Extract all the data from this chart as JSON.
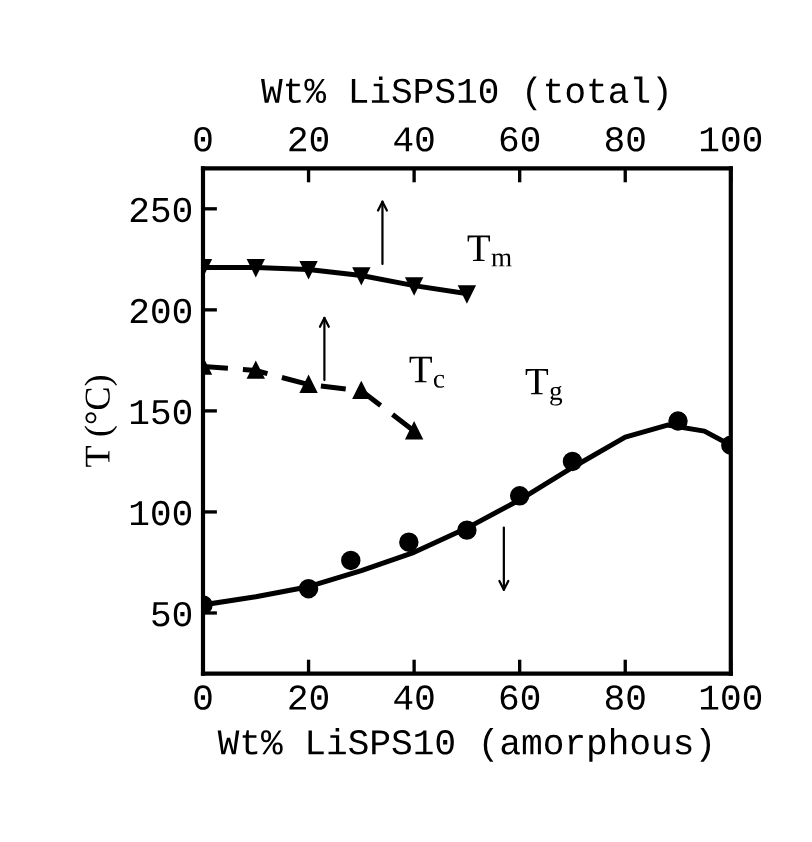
{
  "chart_data": {
    "type": "line",
    "xlabel": "Wt% LiSPS10 (amorphous)",
    "x2label": "Wt% LiSPS10 (total)",
    "ylabel": "T (°C)",
    "xlim": [
      0,
      100
    ],
    "xticks": [
      0,
      20,
      40,
      60,
      80,
      100
    ],
    "x2lim": [
      0,
      100
    ],
    "x2ticks": [
      0,
      20,
      40,
      60,
      80,
      100
    ],
    "ylim": [
      20,
      270
    ],
    "yticks": [
      50,
      100,
      150,
      200,
      250
    ],
    "grid": false,
    "series": [
      {
        "color": "#000000",
        "marker": "triangle_down",
        "line_style": "solid",
        "x": [
          0,
          10,
          20,
          30,
          40,
          50
        ],
        "values": [
          221,
          221,
          220,
          217,
          212,
          208
        ]
      },
      {
        "color": "#000000",
        "marker": "triangle",
        "line_style": "dashed",
        "x": [
          0,
          10,
          20,
          30,
          40
        ],
        "values": [
          172,
          170,
          163,
          160,
          140
        ]
      },
      {
        "type": "scatter",
        "color": "#000000",
        "marker": "circle",
        "x": [
          0,
          20,
          28,
          39,
          50,
          60,
          70,
          90,
          100
        ],
        "values": [
          54,
          62,
          76,
          85,
          91,
          108,
          125,
          145,
          133
        ]
      },
      {
        "color": "#000000",
        "marker": "none",
        "line_style": "solid",
        "x": [
          0,
          10,
          20,
          30,
          40,
          50,
          60,
          70,
          80,
          88,
          95,
          100
        ],
        "values": [
          54,
          58,
          63,
          71,
          80,
          92,
          106,
          122,
          137,
          143,
          140,
          133
        ]
      }
    ],
    "annotations": [
      "T$_{m}$",
      "T$_{c}$",
      "T$_{g}$"
    ]
  }
}
